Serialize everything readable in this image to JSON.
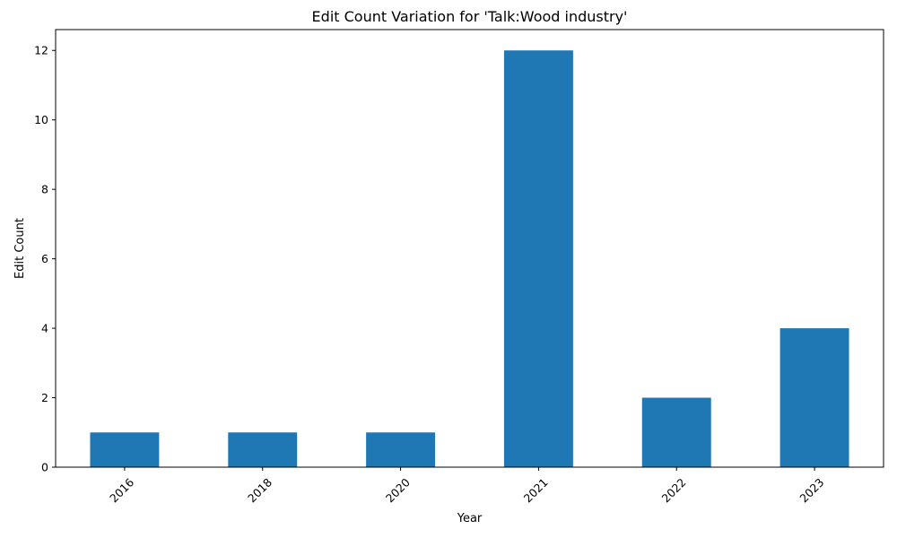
{
  "chart_data": {
    "type": "bar",
    "title": "Edit Count Variation for 'Talk:Wood industry'",
    "xlabel": "Year",
    "ylabel": "Edit Count",
    "categories": [
      "2016",
      "2018",
      "2020",
      "2021",
      "2022",
      "2023"
    ],
    "values": [
      1,
      1,
      1,
      12,
      2,
      4
    ],
    "ylim": [
      0,
      12.6
    ],
    "yticks": [
      0,
      2,
      4,
      6,
      8,
      10,
      12
    ],
    "grid": false,
    "legend": "none",
    "bar_color": "#1f77b4"
  }
}
